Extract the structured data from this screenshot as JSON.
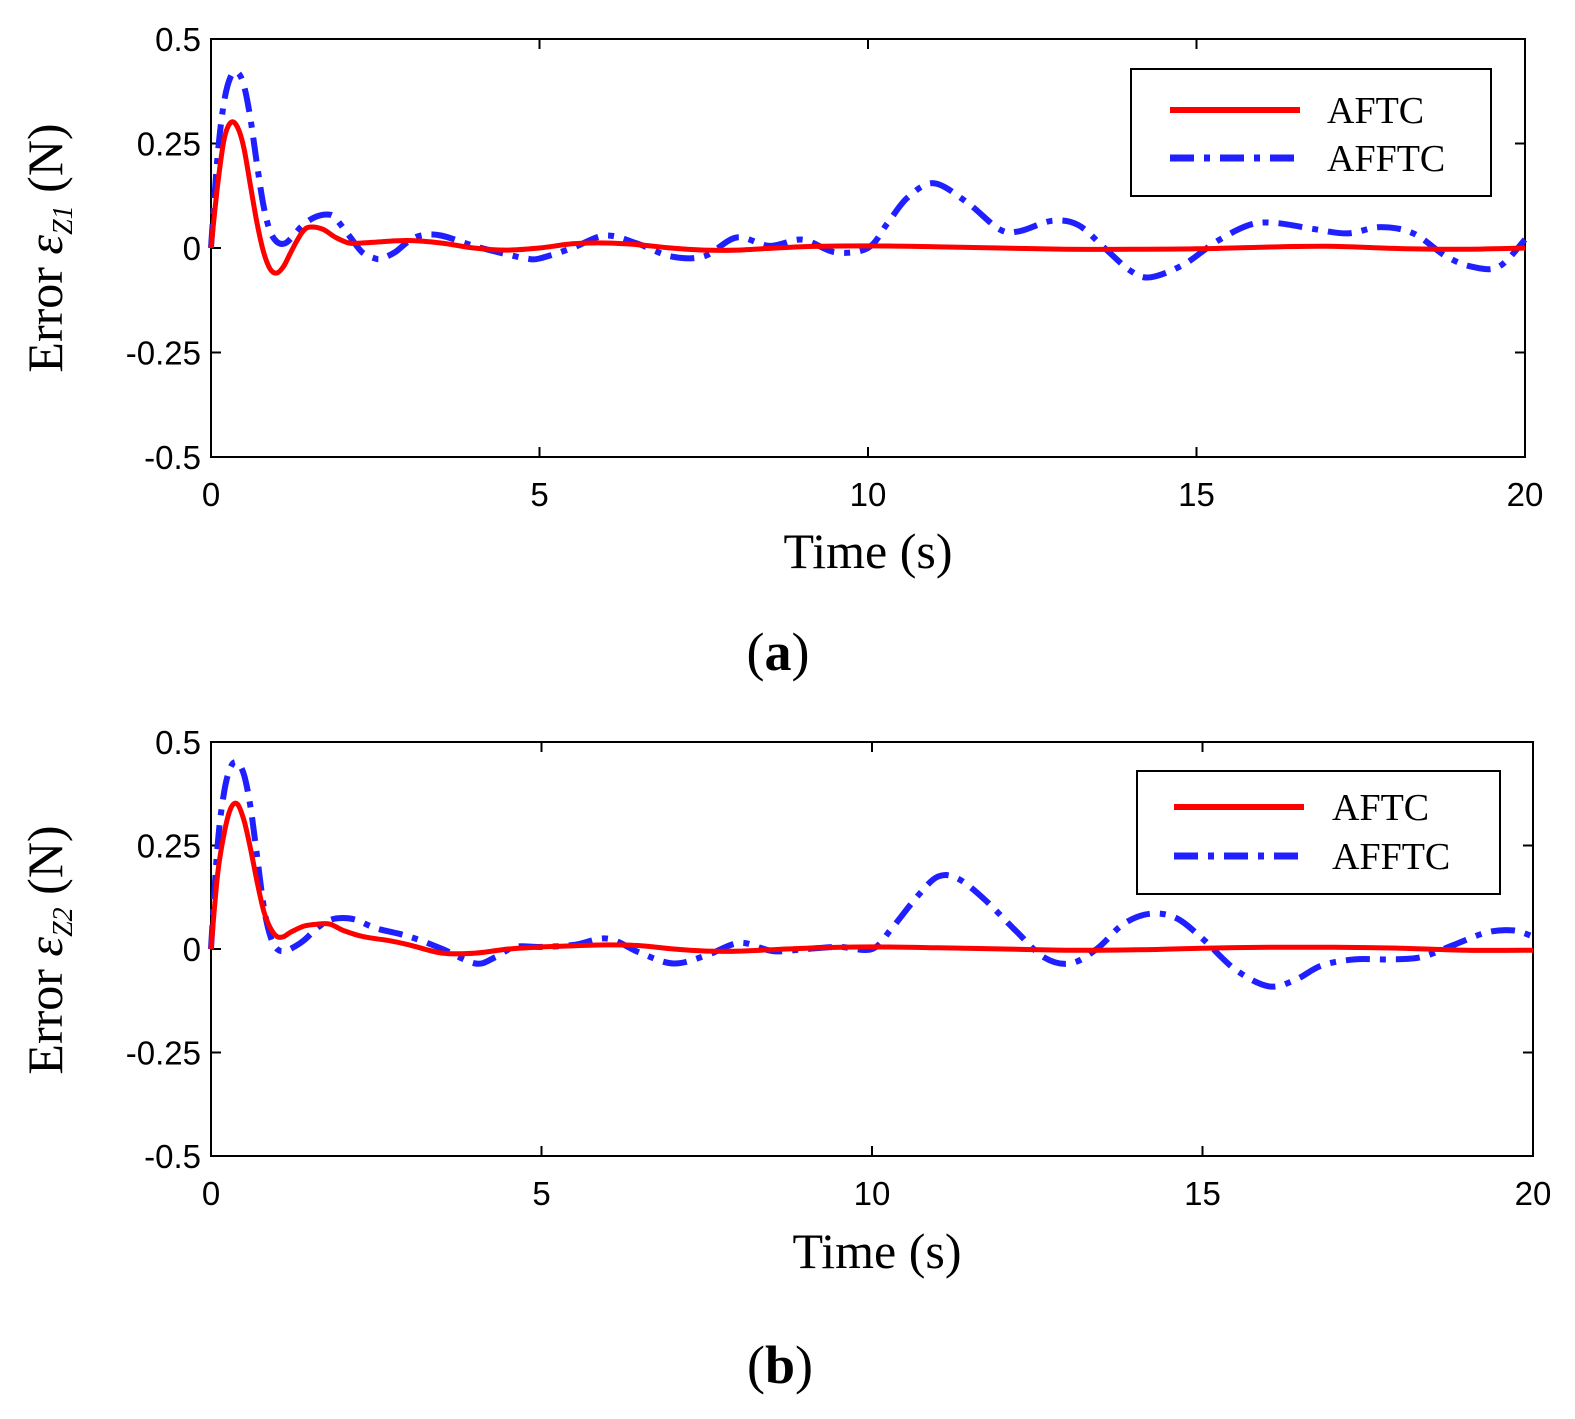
{
  "chart_data": [
    {
      "type": "line",
      "panel_label": "a",
      "ylabel": {
        "prefix": "Error ",
        "symbol": "ε",
        "subscript": "Z1",
        "suffix": " (N)"
      },
      "xlabel": "Time (s)",
      "xlim": [
        0,
        20
      ],
      "ylim": [
        -0.5,
        0.5
      ],
      "xticks": [
        0,
        5,
        10,
        15,
        20
      ],
      "yticks": [
        -0.5,
        -0.25,
        0,
        0.25,
        0.5
      ],
      "xtick_labels": [
        "0",
        "5",
        "10",
        "15",
        "20"
      ],
      "ytick_labels": [
        "-0.5",
        "-0.25",
        "0",
        "0.25",
        "0.5"
      ],
      "legend_position": "top-right",
      "series": [
        {
          "name": "AFTC",
          "color": "#ff0000",
          "style": "solid",
          "x": [
            0,
            0.1,
            0.2,
            0.3,
            0.4,
            0.5,
            0.6,
            0.7,
            0.8,
            0.9,
            1.0,
            1.1,
            1.2,
            1.3,
            1.4,
            1.5,
            1.7,
            1.9,
            2.1,
            2.3,
            2.6,
            3.0,
            3.5,
            4.0,
            4.5,
            5.0,
            5.5,
            6.0,
            6.5,
            7.0,
            7.5,
            8.0,
            9.0,
            10.0,
            11.0,
            12.0,
            13.0,
            14.0,
            15.0,
            16.0,
            17.0,
            18.0,
            19.0,
            20.0
          ],
          "values": [
            0,
            0.15,
            0.26,
            0.3,
            0.29,
            0.24,
            0.15,
            0.06,
            -0.01,
            -0.05,
            -0.06,
            -0.045,
            -0.015,
            0.015,
            0.04,
            0.05,
            0.045,
            0.025,
            0.012,
            0.012,
            0.015,
            0.018,
            0.012,
            0.0,
            -0.005,
            0.0,
            0.01,
            0.012,
            0.008,
            0.0,
            -0.005,
            -0.005,
            0.003,
            0.005,
            0.003,
            0.0,
            -0.003,
            -0.003,
            -0.002,
            0.002,
            0.004,
            -0.001,
            -0.003,
            0.0
          ]
        },
        {
          "name": "AFFTC",
          "color": "#1f1fff",
          "style": "dashdot",
          "x": [
            0,
            0.1,
            0.2,
            0.3,
            0.4,
            0.5,
            0.6,
            0.7,
            0.8,
            0.9,
            1.0,
            1.1,
            1.2,
            1.4,
            1.6,
            1.8,
            1.9,
            2.1,
            2.3,
            2.5,
            2.6,
            2.8,
            3.0,
            3.2,
            3.5,
            4.0,
            4.5,
            4.8,
            5.0,
            5.5,
            6.0,
            6.5,
            7.0,
            7.5,
            8.0,
            8.5,
            9.0,
            9.5,
            10.0,
            10.3,
            10.6,
            11.0,
            11.5,
            12.0,
            12.3,
            12.8,
            13.2,
            13.6,
            14.0,
            14.3,
            14.8,
            15.3,
            15.8,
            16.2,
            16.8,
            17.3,
            17.8,
            18.3,
            18.8,
            19.2,
            19.6,
            20.0
          ],
          "values": [
            0,
            0.22,
            0.35,
            0.41,
            0.42,
            0.39,
            0.31,
            0.2,
            0.1,
            0.04,
            0.015,
            0.01,
            0.02,
            0.055,
            0.075,
            0.08,
            0.07,
            0.03,
            -0.01,
            -0.025,
            -0.025,
            -0.01,
            0.015,
            0.03,
            0.03,
            0.005,
            -0.015,
            -0.025,
            -0.025,
            0.0,
            0.03,
            0.01,
            -0.02,
            -0.02,
            0.025,
            0.005,
            0.02,
            -0.01,
            0.0,
            0.06,
            0.12,
            0.155,
            0.11,
            0.045,
            0.04,
            0.065,
            0.055,
            0.0,
            -0.055,
            -0.07,
            -0.04,
            0.015,
            0.055,
            0.06,
            0.045,
            0.035,
            0.05,
            0.035,
            -0.02,
            -0.045,
            -0.045,
            0.02
          ]
        }
      ]
    },
    {
      "type": "line",
      "panel_label": "b",
      "ylabel": {
        "prefix": "Error ",
        "symbol": "ε",
        "subscript": "Z2",
        "suffix": " (N)"
      },
      "xlabel": "Time (s)",
      "xlim": [
        0,
        20
      ],
      "ylim": [
        -0.5,
        0.5
      ],
      "xticks": [
        0,
        5,
        10,
        15,
        20
      ],
      "yticks": [
        -0.5,
        -0.25,
        0,
        0.25,
        0.5
      ],
      "xtick_labels": [
        "0",
        "5",
        "10",
        "15",
        "20"
      ],
      "ytick_labels": [
        "-0.5",
        "-0.25",
        "0",
        "0.25",
        "0.5"
      ],
      "legend_position": "top-right",
      "series": [
        {
          "name": "AFTC",
          "color": "#ff0000",
          "style": "solid",
          "x": [
            0,
            0.1,
            0.2,
            0.3,
            0.4,
            0.5,
            0.6,
            0.7,
            0.8,
            0.9,
            1.0,
            1.1,
            1.2,
            1.4,
            1.6,
            1.8,
            2.0,
            2.3,
            2.7,
            3.0,
            3.5,
            4.0,
            4.5,
            5.0,
            5.5,
            6.0,
            6.5,
            7.0,
            7.5,
            8.0,
            9.0,
            10.0,
            11.0,
            12.0,
            13.0,
            14.0,
            15.0,
            16.0,
            17.0,
            18.0,
            19.0,
            20.0
          ],
          "values": [
            0,
            0.18,
            0.28,
            0.34,
            0.35,
            0.31,
            0.24,
            0.16,
            0.09,
            0.05,
            0.03,
            0.03,
            0.04,
            0.055,
            0.06,
            0.06,
            0.045,
            0.03,
            0.02,
            0.01,
            -0.01,
            -0.01,
            0.0,
            0.005,
            0.008,
            0.01,
            0.008,
            0.0,
            -0.005,
            -0.005,
            0.002,
            0.005,
            0.003,
            0.0,
            -0.003,
            -0.002,
            0.002,
            0.004,
            0.004,
            0.002,
            -0.003,
            -0.003
          ]
        },
        {
          "name": "AFFTC",
          "color": "#1f1fff",
          "style": "dashdot",
          "x": [
            0,
            0.1,
            0.2,
            0.3,
            0.4,
            0.5,
            0.6,
            0.7,
            0.8,
            0.9,
            1.0,
            1.1,
            1.2,
            1.4,
            1.6,
            1.8,
            2.0,
            2.2,
            2.5,
            3.0,
            3.5,
            4.0,
            4.3,
            4.6,
            5.0,
            5.5,
            6.0,
            6.5,
            7.0,
            7.5,
            8.0,
            8.5,
            9.0,
            9.5,
            10.0,
            10.3,
            10.7,
            11.0,
            11.3,
            11.7,
            12.2,
            12.6,
            13.0,
            13.4,
            13.8,
            14.2,
            14.6,
            15.0,
            15.5,
            16.0,
            16.4,
            16.8,
            17.3,
            17.8,
            18.3,
            18.8,
            19.3,
            19.7,
            20.0
          ],
          "values": [
            0,
            0.25,
            0.38,
            0.44,
            0.45,
            0.42,
            0.34,
            0.22,
            0.1,
            0.03,
            0.0,
            -0.005,
            0.0,
            0.02,
            0.05,
            0.07,
            0.075,
            0.07,
            0.05,
            0.03,
            0.0,
            -0.035,
            -0.02,
            0.005,
            0.005,
            0.01,
            0.025,
            -0.01,
            -0.035,
            -0.015,
            0.015,
            -0.005,
            0.0,
            0.005,
            0.0,
            0.05,
            0.13,
            0.175,
            0.17,
            0.12,
            0.04,
            -0.02,
            -0.035,
            0.0,
            0.06,
            0.085,
            0.075,
            0.025,
            -0.05,
            -0.09,
            -0.075,
            -0.04,
            -0.025,
            -0.025,
            -0.02,
            0.01,
            0.04,
            0.045,
            0.03
          ]
        }
      ]
    }
  ]
}
